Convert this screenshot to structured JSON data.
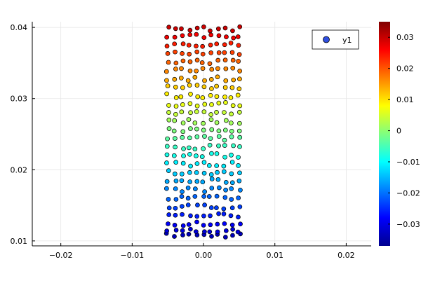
{
  "chart_data": {
    "type": "scatter",
    "title": "",
    "xlabel": "",
    "ylabel": "",
    "xlim": [
      -0.024,
      0.0235
    ],
    "ylim": [
      0.0093,
      0.0408
    ],
    "x_ticks": [
      -0.02,
      -0.01,
      0.0,
      0.01,
      0.02
    ],
    "x_tick_labels": [
      "−0.02",
      "−0.01",
      "0.00",
      "0.01",
      "0.02"
    ],
    "y_ticks": [
      0.01,
      0.02,
      0.03,
      0.04
    ],
    "y_tick_labels": [
      "0.01",
      "0.02",
      "0.03",
      "0.04"
    ],
    "grid": true,
    "legend": {
      "position": "top-right",
      "entries": [
        "y1"
      ]
    },
    "series": [
      {
        "name": "y1",
        "color_by": "value",
        "x_range": [
          -0.005,
          0.005
        ],
        "y_rows": [
          0.0108,
          0.0114,
          0.0124,
          0.0136,
          0.0148,
          0.016,
          0.0172,
          0.0184,
          0.0196,
          0.0208,
          0.022,
          0.0232,
          0.0244,
          0.0256,
          0.0268,
          0.028,
          0.0292,
          0.0304,
          0.0316,
          0.0328,
          0.034,
          0.0352,
          0.0364,
          0.0376,
          0.0388,
          0.0398
        ],
        "color_values": [
          -0.0335,
          -0.031,
          -0.0285,
          -0.026,
          -0.0235,
          -0.021,
          -0.0185,
          -0.016,
          -0.0135,
          -0.011,
          -0.0085,
          -0.006,
          -0.0035,
          -0.001,
          0.0015,
          0.004,
          0.0065,
          0.009,
          0.0115,
          0.014,
          0.0165,
          0.019,
          0.0215,
          0.024,
          0.0265,
          0.0295
        ]
      }
    ],
    "colorbar": {
      "range": [
        -0.037,
        0.035
      ],
      "ticks": [
        -0.03,
        -0.02,
        -0.01,
        0.0,
        0.01,
        0.02,
        0.03
      ],
      "tick_labels": [
        "−0.03",
        "−0.02",
        "−0.01",
        "0",
        "0.01",
        "0.02",
        "0.03"
      ],
      "colormap": "jet"
    }
  }
}
